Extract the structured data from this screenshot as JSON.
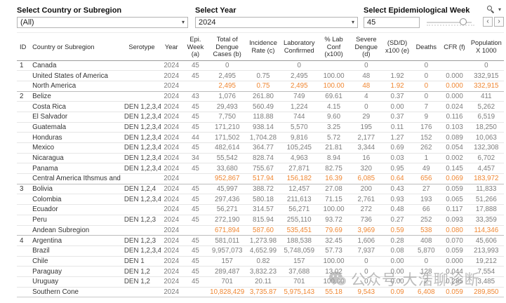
{
  "filters": {
    "country_label": "Select Country or Subregion",
    "country_value": "(All)",
    "year_label": "Select Year",
    "year_value": "2024",
    "week_label": "Select Epidemiological Week",
    "week_value": "45"
  },
  "glyphs": {
    "caret": "▾",
    "prev": "‹",
    "next": "›"
  },
  "watermark": {
    "text": "公众号·大浩聊诊断"
  },
  "colors": {
    "highlight_orange": "#ef8733",
    "number_gray": "#7d7d7d"
  },
  "table": {
    "columns": [
      {
        "label": "ID",
        "w": 18,
        "align": "left"
      },
      {
        "label": "Country or Subregion",
        "w": 132,
        "align": "left"
      },
      {
        "label": "Serotype",
        "w": 54,
        "align": "center"
      },
      {
        "label": "Year",
        "w": 30,
        "align": "center"
      },
      {
        "label": "Epi. Week (a)",
        "w": 38,
        "align": "center"
      },
      {
        "label": "Total of Dengue Cases (b)",
        "w": 52,
        "align": "center"
      },
      {
        "label": "Incidence Rate (c)",
        "w": 50,
        "align": "center"
      },
      {
        "label": "Laboratory Confirmed",
        "w": 52,
        "align": "center"
      },
      {
        "label": "% Lab Conf (x100)",
        "w": 46,
        "align": "center"
      },
      {
        "label": "Severe Dengue (d)",
        "w": 46,
        "align": "center"
      },
      {
        "label": "(SD/D) x100 (e)",
        "w": 42,
        "align": "center"
      },
      {
        "label": "Deaths",
        "w": 40,
        "align": "center"
      },
      {
        "label": "CFR (f)",
        "w": 40,
        "align": "center"
      },
      {
        "label": "Population X 1000",
        "w": 50,
        "align": "center"
      }
    ],
    "rows": [
      {
        "id": "1",
        "country": "Canada",
        "serotype": "",
        "year": "2024",
        "week": "45",
        "values": [
          "0",
          "",
          "0",
          "",
          "0",
          "",
          "0",
          "",
          "0"
        ],
        "highlight": false,
        "section_start": false
      },
      {
        "id": "",
        "country": "United States of America",
        "serotype": "",
        "year": "2024",
        "week": "45",
        "values": [
          "2,495",
          "0.75",
          "2,495",
          "100.00",
          "48",
          "1.92",
          "0",
          "0.000",
          "332,915"
        ],
        "highlight": false,
        "section_start": false
      },
      {
        "id": "",
        "country": "North America",
        "serotype": "",
        "year": "2024",
        "week": "",
        "values": [
          "2,495",
          "0.75",
          "2,495",
          "100.00",
          "48",
          "1.92",
          "0",
          "0.000",
          "332,915"
        ],
        "highlight": true,
        "section_start": false
      },
      {
        "id": "2",
        "country": "Belize",
        "serotype": "",
        "year": "2024",
        "week": "43",
        "values": [
          "1,076",
          "261.80",
          "749",
          "69.61",
          "4",
          "0.37",
          "0",
          "0.000",
          "411"
        ],
        "highlight": false,
        "section_start": true
      },
      {
        "id": "",
        "country": "Costa Rica",
        "serotype": "DEN 1,2,3,4",
        "year": "2024",
        "week": "45",
        "values": [
          "29,493",
          "560.49",
          "1,224",
          "4.15",
          "0",
          "0.00",
          "7",
          "0.024",
          "5,262"
        ],
        "highlight": false,
        "section_start": false
      },
      {
        "id": "",
        "country": "El Salvador",
        "serotype": "DEN 1,2,3,4",
        "year": "2024",
        "week": "45",
        "values": [
          "7,750",
          "118.88",
          "744",
          "9.60",
          "29",
          "0.37",
          "9",
          "0.116",
          "6,519"
        ],
        "highlight": false,
        "section_start": false
      },
      {
        "id": "",
        "country": "Guatemala",
        "serotype": "DEN 1,2,3,4",
        "year": "2024",
        "week": "45",
        "values": [
          "171,210",
          "938.14",
          "5,570",
          "3.25",
          "195",
          "0.11",
          "176",
          "0.103",
          "18,250"
        ],
        "highlight": false,
        "section_start": false
      },
      {
        "id": "",
        "country": "Honduras",
        "serotype": "DEN 1,2,3,4",
        "year": "2024",
        "week": "44",
        "values": [
          "171,502",
          "1,704.28",
          "9,816",
          "5.72",
          "2,177",
          "1.27",
          "152",
          "0.089",
          "10,063"
        ],
        "highlight": false,
        "section_start": false
      },
      {
        "id": "",
        "country": "Mexico",
        "serotype": "DEN 1,2,3,4",
        "year": "2024",
        "week": "45",
        "values": [
          "482,614",
          "364.77",
          "105,245",
          "21.81",
          "3,344",
          "0.69",
          "262",
          "0.054",
          "132,308"
        ],
        "highlight": false,
        "section_start": false
      },
      {
        "id": "",
        "country": "Nicaragua",
        "serotype": "DEN 1,2,3,4",
        "year": "2024",
        "week": "34",
        "values": [
          "55,542",
          "828.74",
          "4,963",
          "8.94",
          "16",
          "0.03",
          "1",
          "0.002",
          "6,702"
        ],
        "highlight": false,
        "section_start": false
      },
      {
        "id": "",
        "country": "Panama",
        "serotype": "DEN 1,2,3,4",
        "year": "2024",
        "week": "45",
        "values": [
          "33,680",
          "755.67",
          "27,871",
          "82.75",
          "320",
          "0.95",
          "49",
          "0.145",
          "4,457"
        ],
        "highlight": false,
        "section_start": false
      },
      {
        "id": "",
        "country": "Central America Ithsmus and ..",
        "serotype": "",
        "year": "2024",
        "week": "",
        "values": [
          "952,867",
          "517.94",
          "156,182",
          "16.39",
          "6,085",
          "0.64",
          "656",
          "0.069",
          "183,972"
        ],
        "highlight": true,
        "section_start": false
      },
      {
        "id": "3",
        "country": "Bolivia",
        "serotype": "DEN 1,2,4",
        "year": "2024",
        "week": "45",
        "values": [
          "45,997",
          "388.72",
          "12,457",
          "27.08",
          "200",
          "0.43",
          "27",
          "0.059",
          "11,833"
        ],
        "highlight": false,
        "section_start": true
      },
      {
        "id": "",
        "country": "Colombia",
        "serotype": "DEN 1,2,3,4",
        "year": "2024",
        "week": "45",
        "values": [
          "297,436",
          "580.18",
          "211,613",
          "71.15",
          "2,761",
          "0.93",
          "193",
          "0.065",
          "51,266"
        ],
        "highlight": false,
        "section_start": false
      },
      {
        "id": "",
        "country": "Ecuador",
        "serotype": "",
        "year": "2024",
        "week": "45",
        "values": [
          "56,271",
          "314.57",
          "56,271",
          "100.00",
          "272",
          "0.48",
          "66",
          "0.117",
          "17,888"
        ],
        "highlight": false,
        "section_start": false
      },
      {
        "id": "",
        "country": "Peru",
        "serotype": "DEN 1,2,3",
        "year": "2024",
        "week": "45",
        "values": [
          "272,190",
          "815.94",
          "255,110",
          "93.72",
          "736",
          "0.27",
          "252",
          "0.093",
          "33,359"
        ],
        "highlight": false,
        "section_start": false
      },
      {
        "id": "",
        "country": "Andean Subregion",
        "serotype": "",
        "year": "2024",
        "week": "",
        "values": [
          "671,894",
          "587.60",
          "535,451",
          "79.69",
          "3,969",
          "0.59",
          "538",
          "0.080",
          "114,346"
        ],
        "highlight": true,
        "section_start": false
      },
      {
        "id": "4",
        "country": "Argentina",
        "serotype": "DEN 1,2,3",
        "year": "2024",
        "week": "45",
        "values": [
          "581,011",
          "1,273.98",
          "188,538",
          "32.45",
          "1,606",
          "0.28",
          "408",
          "0.070",
          "45,606"
        ],
        "highlight": false,
        "section_start": true
      },
      {
        "id": "",
        "country": "Brazil",
        "serotype": "DEN 1,2,3,4",
        "year": "2024",
        "week": "45",
        "values": [
          "9,957,073",
          "4,652.99",
          "5,748,059",
          "57.73",
          "7,937",
          "0.08",
          "5,870",
          "0.059",
          "213,993"
        ],
        "highlight": false,
        "section_start": false
      },
      {
        "id": "",
        "country": "Chile",
        "serotype": "DEN 1",
        "year": "2024",
        "week": "45",
        "values": [
          "157",
          "0.82",
          "157",
          "100.00",
          "0",
          "0.00",
          "0",
          "0.000",
          "19,212"
        ],
        "highlight": false,
        "section_start": false
      },
      {
        "id": "",
        "country": "Paraguay",
        "serotype": "DEN 1,2",
        "year": "2024",
        "week": "45",
        "values": [
          "289,487",
          "3,832.23",
          "37,688",
          "13.02",
          "0",
          "0.00",
          "128",
          "0.044",
          "7,554"
        ],
        "highlight": false,
        "section_start": false
      },
      {
        "id": "",
        "country": "Uruguay",
        "serotype": "DEN 1,2",
        "year": "2024",
        "week": "45",
        "values": [
          "701",
          "20.11",
          "701",
          "100.00",
          "0",
          "0.00",
          "2",
          "0.285",
          "3,485"
        ],
        "highlight": false,
        "section_start": false
      },
      {
        "id": "",
        "country": "Southern Cone",
        "serotype": "",
        "year": "2024",
        "week": "",
        "values": [
          "10,828,429",
          "3,735.87",
          "5,975,143",
          "55.18",
          "9,543",
          "0.09",
          "6,408",
          "0.059",
          "289,850"
        ],
        "highlight": true,
        "section_start": false
      }
    ]
  }
}
